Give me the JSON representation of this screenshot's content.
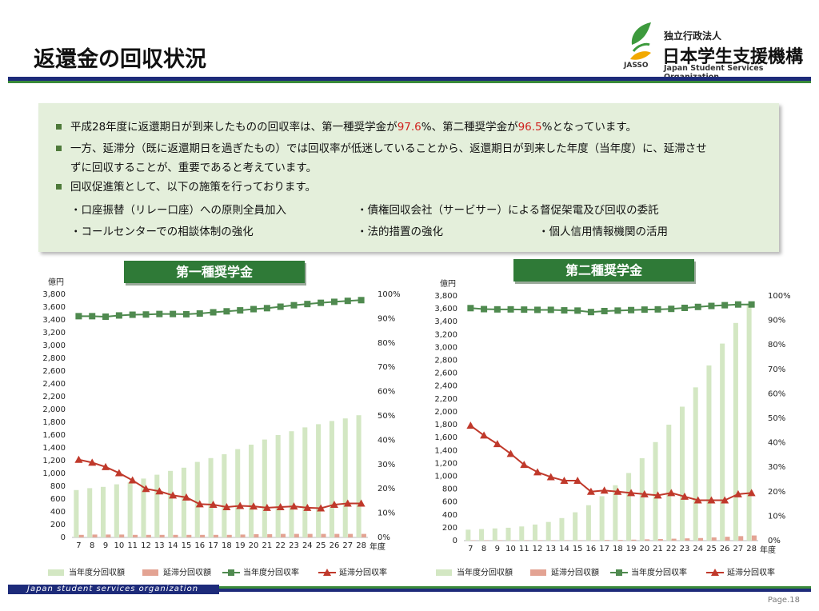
{
  "header": {
    "title": "返還金の回収状況",
    "logo": {
      "org_type": "独立行政法人",
      "name": "日本学生支援機構",
      "mark": "JASSO",
      "english": "Japan Student Services Organization"
    }
  },
  "summary": {
    "bullet1": {
      "before": "平成28年度に返還期日が到来したものの回収率は、第一種奨学金が",
      "rate1": "97.6",
      "middle": "%、第二種奨学金が",
      "rate2": "96.5",
      "after": "%となっています。"
    },
    "bullet2": "一方、延滞分（既に返還期日を過ぎたもの）では回収率が低迷していることから、返還期日が到来した年度（当年度）に、延滞させずに回収することが、重要であると考えています。",
    "bullet3": "回収促進策として、以下の施策を行っております。",
    "measures": [
      "・口座振替（リレー口座）への原則全員加入",
      "・債権回収会社（サービサー）による督促架電及び回収の委託",
      "・コールセンターでの相談体制の強化",
      "・法的措置の強化",
      "・個人信用情報機関の活用"
    ]
  },
  "chart_data": [
    {
      "type": "bar",
      "title": "第一種奨学金",
      "ylabel": "億円",
      "xlabel": "年度",
      "categories": [
        "7",
        "8",
        "9",
        "10",
        "11",
        "12",
        "13",
        "14",
        "15",
        "16",
        "17",
        "18",
        "19",
        "20",
        "21",
        "22",
        "23",
        "24",
        "25",
        "26",
        "27",
        "28"
      ],
      "ylim": [
        0,
        3800
      ],
      "yticks": [
        0,
        200,
        400,
        600,
        800,
        {
          "value": 1000,
          "label": "1,000"
        },
        {
          "value": 1200,
          "label": "1,200"
        },
        {
          "value": 1400,
          "label": "1,400"
        },
        {
          "value": 1600,
          "label": "1,600"
        },
        {
          "value": 1800,
          "label": "1,800"
        },
        {
          "value": 2000,
          "label": "2,000"
        },
        {
          "value": 2200,
          "label": "2,200"
        },
        {
          "value": 2400,
          "label": "2,400"
        },
        {
          "value": 2600,
          "label": "2,600"
        },
        {
          "value": 2800,
          "label": "2,800"
        },
        {
          "value": 3000,
          "label": "3,000"
        },
        {
          "value": 3200,
          "label": "3,200"
        },
        {
          "value": 3400,
          "label": "3,400"
        },
        {
          "value": 3600,
          "label": "3,600"
        },
        {
          "value": 3800,
          "label": "3,800"
        }
      ],
      "y2lim": [
        0,
        100
      ],
      "y2ticks": [
        {
          "value": 0,
          "label": "0%"
        },
        {
          "value": 10,
          "label": "10%"
        },
        {
          "value": 20,
          "label": "20%"
        },
        {
          "value": 30,
          "label": "30%"
        },
        {
          "value": 40,
          "label": "40%"
        },
        {
          "value": 50,
          "label": "50%"
        },
        {
          "value": 60,
          "label": "60%"
        },
        {
          "value": 70,
          "label": "70%"
        },
        {
          "value": 80,
          "label": "80%"
        },
        {
          "value": 90,
          "label": "90%"
        },
        {
          "value": 100,
          "label": "100%"
        }
      ],
      "grid": false,
      "series": [
        {
          "name": "当年度分回収額",
          "type": "bar",
          "color": "#d3e7c3",
          "values": [
            740,
            770,
            790,
            830,
            860,
            920,
            980,
            1040,
            1090,
            1180,
            1240,
            1300,
            1380,
            1450,
            1530,
            1600,
            1660,
            1720,
            1770,
            1820,
            1860,
            1910
          ]
        },
        {
          "name": "延滞分回収額",
          "type": "bar",
          "color": "#e3a393",
          "values": [
            40,
            45,
            45,
            45,
            40,
            40,
            40,
            40,
            40,
            40,
            40,
            40,
            45,
            50,
            50,
            55,
            55,
            55,
            55,
            55,
            55,
            55
          ]
        },
        {
          "name": "当年度分回収率",
          "type": "line",
          "marker": "square",
          "axis": "y2",
          "color": "#4f8a4f",
          "values": [
            91.0,
            91.0,
            90.8,
            91.3,
            91.6,
            91.7,
            91.9,
            91.9,
            91.8,
            92.1,
            92.6,
            93.0,
            93.4,
            93.9,
            94.3,
            94.9,
            95.5,
            96.0,
            96.5,
            96.9,
            97.3,
            97.6
          ]
        },
        {
          "name": "延滞分回収率",
          "type": "line",
          "marker": "triangle",
          "axis": "y2",
          "color": "#c0392b",
          "values": [
            32.0,
            30.8,
            29.0,
            26.5,
            23.5,
            20.0,
            19.0,
            17.3,
            16.5,
            13.7,
            13.5,
            12.5,
            13.0,
            12.8,
            12.2,
            12.5,
            12.8,
            12.2,
            12.0,
            13.5,
            14.0,
            14.0
          ]
        }
      ]
    },
    {
      "type": "bar",
      "title": "第二種奨学金",
      "ylabel": "億円",
      "xlabel": "年度",
      "categories": [
        "7",
        "8",
        "9",
        "10",
        "11",
        "12",
        "13",
        "14",
        "15",
        "16",
        "17",
        "18",
        "19",
        "20",
        "21",
        "22",
        "23",
        "24",
        "25",
        "26",
        "27",
        "28"
      ],
      "ylim": [
        0,
        3800
      ],
      "yticks": [
        0,
        200,
        400,
        600,
        800,
        {
          "value": 1000,
          "label": "1,000"
        },
        {
          "value": 1200,
          "label": "1,200"
        },
        {
          "value": 1400,
          "label": "1,400"
        },
        {
          "value": 1600,
          "label": "1,600"
        },
        {
          "value": 1800,
          "label": "1,800"
        },
        {
          "value": 2000,
          "label": "2,000"
        },
        {
          "value": 2200,
          "label": "2,200"
        },
        {
          "value": 2400,
          "label": "2,400"
        },
        {
          "value": 2600,
          "label": "2,600"
        },
        {
          "value": 2800,
          "label": "2,800"
        },
        {
          "value": 3000,
          "label": "3,000"
        },
        {
          "value": 3200,
          "label": "3,200"
        },
        {
          "value": 3400,
          "label": "3,400"
        },
        {
          "value": 3600,
          "label": "3,600"
        },
        {
          "value": 3800,
          "label": "3,800"
        }
      ],
      "y2lim": [
        0,
        100
      ],
      "y2ticks": [
        {
          "value": 0,
          "label": "0%"
        },
        {
          "value": 10,
          "label": "10%"
        },
        {
          "value": 20,
          "label": "20%"
        },
        {
          "value": 30,
          "label": "30%"
        },
        {
          "value": 40,
          "label": "40%"
        },
        {
          "value": 50,
          "label": "50%"
        },
        {
          "value": 60,
          "label": "60%"
        },
        {
          "value": 70,
          "label": "70%"
        },
        {
          "value": 80,
          "label": "80%"
        },
        {
          "value": 90,
          "label": "90%"
        },
        {
          "value": 100,
          "label": "100%"
        }
      ],
      "grid": false,
      "series": [
        {
          "name": "当年度分回収額",
          "type": "bar",
          "color": "#d3e7c3",
          "values": [
            170,
            180,
            190,
            200,
            220,
            250,
            290,
            350,
            440,
            550,
            690,
            860,
            1050,
            1280,
            1530,
            1800,
            2080,
            2380,
            2720,
            3060,
            3380,
            3680
          ]
        },
        {
          "name": "延滞分回収額",
          "type": "bar",
          "color": "#e3a393",
          "values": [
            5,
            5,
            5,
            5,
            5,
            5,
            5,
            5,
            5,
            5,
            10,
            10,
            15,
            20,
            25,
            30,
            35,
            40,
            50,
            60,
            70,
            80
          ]
        },
        {
          "name": "当年度分回収率",
          "type": "line",
          "marker": "square",
          "axis": "y2",
          "color": "#4f8a4f",
          "values": [
            95.0,
            94.6,
            94.5,
            94.5,
            94.4,
            94.3,
            94.3,
            94.1,
            94.0,
            93.4,
            93.8,
            94.0,
            94.2,
            94.4,
            94.5,
            94.7,
            95.1,
            95.5,
            95.9,
            96.2,
            96.5,
            96.5
          ]
        },
        {
          "name": "延滞分回収率",
          "type": "line",
          "marker": "triangle",
          "axis": "y2",
          "color": "#c0392b",
          "values": [
            47.0,
            43.0,
            39.5,
            35.5,
            31.0,
            28.0,
            26.0,
            24.5,
            24.5,
            20.0,
            20.5,
            20.0,
            19.5,
            19.0,
            18.5,
            19.5,
            18.0,
            16.5,
            16.5,
            16.5,
            19.0,
            19.5
          ]
        }
      ]
    }
  ],
  "footer": {
    "org": "Japan student services organization",
    "page": "Page.18"
  }
}
